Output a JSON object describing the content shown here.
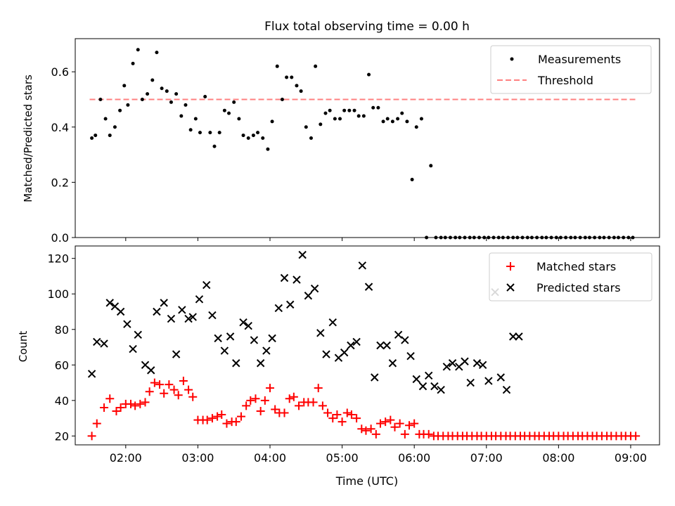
{
  "figure_title": "Flux total observing time = 0.00 h",
  "xlabel": "Time (UTC)",
  "x_tick_labels": [
    "02:00",
    "03:00",
    "04:00",
    "05:00",
    "06:00",
    "07:00",
    "08:00",
    "09:00"
  ],
  "colors": {
    "measurement": "#000000",
    "threshold": "#ff8080",
    "matched": "#ff0000",
    "predicted": "#000000"
  },
  "chart_data": [
    {
      "type": "scatter",
      "title": "Flux total observing time = 0.00 h",
      "ylabel": "Matched/Predicted stars",
      "xlabel": "",
      "xlim": [
        1.3,
        9.4
      ],
      "ylim": [
        0.0,
        0.72
      ],
      "yticks": [
        0.0,
        0.2,
        0.4,
        0.6
      ],
      "ytick_labels": [
        "0.0",
        "0.2",
        "0.4",
        "0.6"
      ],
      "legend": {
        "placement": "top-right",
        "entries": [
          "Measurements",
          "Threshold"
        ]
      },
      "threshold": {
        "name": "Threshold",
        "y": 0.5,
        "x": [
          1.5,
          9.1
        ]
      },
      "series": [
        {
          "name": "Measurements",
          "marker": "dot",
          "x": [
            1.53,
            1.58,
            1.65,
            1.72,
            1.78,
            1.85,
            1.92,
            1.98,
            2.03,
            2.1,
            2.17,
            2.23,
            2.3,
            2.37,
            2.43,
            2.5,
            2.57,
            2.63,
            2.7,
            2.77,
            2.83,
            2.9,
            2.97,
            3.03,
            3.1,
            3.17,
            3.23,
            3.3,
            3.37,
            3.43,
            3.5,
            3.57,
            3.63,
            3.7,
            3.77,
            3.83,
            3.9,
            3.97,
            4.03,
            4.1,
            4.17,
            4.23,
            4.3,
            4.37,
            4.43,
            4.5,
            4.57,
            4.63,
            4.7,
            4.77,
            4.83,
            4.9,
            4.97,
            5.03,
            5.1,
            5.17,
            5.23,
            5.3,
            5.37,
            5.43,
            5.5,
            5.57,
            5.63,
            5.7,
            5.77,
            5.83,
            5.9,
            5.97,
            6.03,
            6.1,
            6.17,
            6.23,
            6.3,
            6.37,
            6.43,
            6.5,
            6.57,
            6.63,
            6.7,
            6.77,
            6.83,
            6.9,
            6.97,
            7.03,
            7.1,
            7.17,
            7.23,
            7.3,
            7.37,
            7.43,
            7.5,
            7.57,
            7.63,
            7.7,
            7.77,
            7.83,
            7.9,
            7.97,
            8.03,
            8.1,
            8.17,
            8.23,
            8.3,
            8.37,
            8.43,
            8.5,
            8.57,
            8.63,
            8.7,
            8.77,
            8.83,
            8.9,
            8.97,
            9.03
          ],
          "y": [
            0.36,
            0.37,
            0.5,
            0.43,
            0.37,
            0.4,
            0.46,
            0.55,
            0.48,
            0.63,
            0.68,
            0.5,
            0.52,
            0.57,
            0.67,
            0.54,
            0.53,
            0.49,
            0.52,
            0.44,
            0.48,
            0.39,
            0.43,
            0.38,
            0.51,
            0.38,
            0.33,
            0.38,
            0.46,
            0.45,
            0.49,
            0.43,
            0.37,
            0.36,
            0.37,
            0.38,
            0.36,
            0.32,
            0.42,
            0.62,
            0.5,
            0.58,
            0.58,
            0.55,
            0.53,
            0.4,
            0.36,
            0.62,
            0.41,
            0.45,
            0.46,
            0.43,
            0.43,
            0.46,
            0.46,
            0.46,
            0.44,
            0.44,
            0.59,
            0.47,
            0.47,
            0.42,
            0.43,
            0.42,
            0.43,
            0.45,
            0.42,
            0.21,
            0.4,
            0.43,
            0.0,
            0.26,
            0.0,
            0.0,
            0.0,
            0.0,
            0.0,
            0.0,
            0.0,
            0.0,
            0.0,
            0.0,
            0.0,
            0.0,
            0.0,
            0.0,
            0.0,
            0.0,
            0.0,
            0.0,
            0.0,
            0.0,
            0.0,
            0.0,
            0.0,
            0.0,
            0.0,
            0.0,
            0.0,
            0.0,
            0.0,
            0.0,
            0.0,
            0.0,
            0.0,
            0.0,
            0.0,
            0.0,
            0.0,
            0.0,
            0.0,
            0.0,
            0.0,
            0.0
          ]
        }
      ]
    },
    {
      "type": "scatter",
      "title": "",
      "ylabel": "Count",
      "xlabel": "Time (UTC)",
      "xlim": [
        1.3,
        9.4
      ],
      "ylim": [
        15,
        127
      ],
      "yticks": [
        20,
        40,
        60,
        80,
        100,
        120
      ],
      "ytick_labels": [
        "20",
        "40",
        "60",
        "80",
        "100",
        "120"
      ],
      "legend": {
        "placement": "top-right",
        "entries": [
          "Matched stars",
          "Predicted stars"
        ]
      },
      "series": [
        {
          "name": "Matched stars",
          "marker": "plus",
          "x": [
            1.53,
            1.6,
            1.7,
            1.78,
            1.87,
            1.93,
            2.0,
            2.07,
            2.13,
            2.2,
            2.27,
            2.33,
            2.4,
            2.47,
            2.53,
            2.6,
            2.67,
            2.73,
            2.8,
            2.87,
            2.93,
            3.0,
            3.07,
            3.13,
            3.2,
            3.27,
            3.33,
            3.4,
            3.47,
            3.53,
            3.6,
            3.67,
            3.73,
            3.8,
            3.87,
            3.93,
            4.0,
            4.07,
            4.13,
            4.2,
            4.27,
            4.33,
            4.4,
            4.47,
            4.53,
            4.6,
            4.67,
            4.73,
            4.8,
            4.87,
            4.93,
            5.0,
            5.07,
            5.13,
            5.2,
            5.27,
            5.33,
            5.4,
            5.47,
            5.53,
            5.6,
            5.67,
            5.73,
            5.8,
            5.87,
            5.93,
            6.0,
            6.07,
            6.13,
            6.2,
            6.27,
            6.33,
            6.4,
            6.47,
            6.53,
            6.6,
            6.67,
            6.73,
            6.8,
            6.87,
            6.93,
            7.0,
            7.07,
            7.13,
            7.2,
            7.27,
            7.33,
            7.4,
            7.47,
            7.53,
            7.6,
            7.67,
            7.73,
            7.8,
            7.87,
            7.93,
            8.0,
            8.07,
            8.13,
            8.2,
            8.27,
            8.33,
            8.4,
            8.47,
            8.53,
            8.6,
            8.67,
            8.73,
            8.8,
            8.87,
            8.93,
            9.0,
            9.07
          ],
          "y": [
            20,
            27,
            36,
            41,
            34,
            36,
            38,
            38,
            37,
            38,
            39,
            45,
            50,
            49,
            44,
            49,
            46,
            43,
            51,
            46,
            42,
            29,
            29,
            29,
            30,
            31,
            32,
            27,
            28,
            28,
            31,
            37,
            40,
            41,
            34,
            40,
            47,
            35,
            33,
            33,
            41,
            42,
            37,
            39,
            39,
            39,
            47,
            37,
            33,
            30,
            32,
            28,
            33,
            32,
            30,
            24,
            23,
            24,
            21,
            27,
            28,
            29,
            25,
            27,
            21,
            26,
            27,
            21,
            21,
            21,
            20,
            20,
            20,
            20,
            20,
            20,
            20,
            20,
            20,
            20,
            20,
            20,
            20,
            20,
            20,
            20,
            20,
            20,
            20,
            20,
            20,
            20,
            20,
            20,
            20,
            20,
            20,
            20,
            20,
            20,
            20,
            20,
            20,
            20,
            20,
            20,
            20,
            20,
            20,
            20,
            20,
            20,
            20
          ]
        },
        {
          "name": "Predicted stars",
          "marker": "x",
          "x": [
            1.53,
            1.6,
            1.7,
            1.78,
            1.85,
            1.93,
            2.02,
            2.1,
            2.17,
            2.27,
            2.35,
            2.43,
            2.53,
            2.63,
            2.7,
            2.78,
            2.87,
            2.93,
            3.02,
            3.12,
            3.2,
            3.28,
            3.37,
            3.45,
            3.53,
            3.63,
            3.7,
            3.78,
            3.87,
            3.95,
            4.03,
            4.12,
            4.2,
            4.28,
            4.37,
            4.45,
            4.53,
            4.62,
            4.7,
            4.78,
            4.87,
            4.95,
            5.03,
            5.12,
            5.2,
            5.28,
            5.37,
            5.45,
            5.53,
            5.62,
            5.7,
            5.78,
            5.87,
            5.95,
            6.03,
            6.12,
            6.2,
            6.28,
            6.37,
            6.45,
            6.53,
            6.62,
            6.7,
            6.78,
            6.87,
            6.95,
            7.03,
            7.12,
            7.2,
            7.28,
            7.37,
            7.45
          ],
          "y": [
            55,
            73,
            72,
            95,
            93,
            90,
            83,
            69,
            77,
            60,
            57,
            90,
            95,
            86,
            66,
            91,
            86,
            87,
            97,
            105,
            88,
            75,
            68,
            76,
            61,
            84,
            82,
            74,
            61,
            68,
            75,
            92,
            109,
            94,
            108,
            122,
            99,
            103,
            78,
            66,
            84,
            64,
            67,
            71,
            73,
            116,
            104,
            53,
            71,
            71,
            61,
            77,
            74,
            65,
            52,
            48,
            54,
            48,
            46,
            59,
            61,
            59,
            62,
            50,
            61,
            60,
            51,
            101,
            53,
            46,
            76,
            76
          ]
        }
      ]
    }
  ]
}
